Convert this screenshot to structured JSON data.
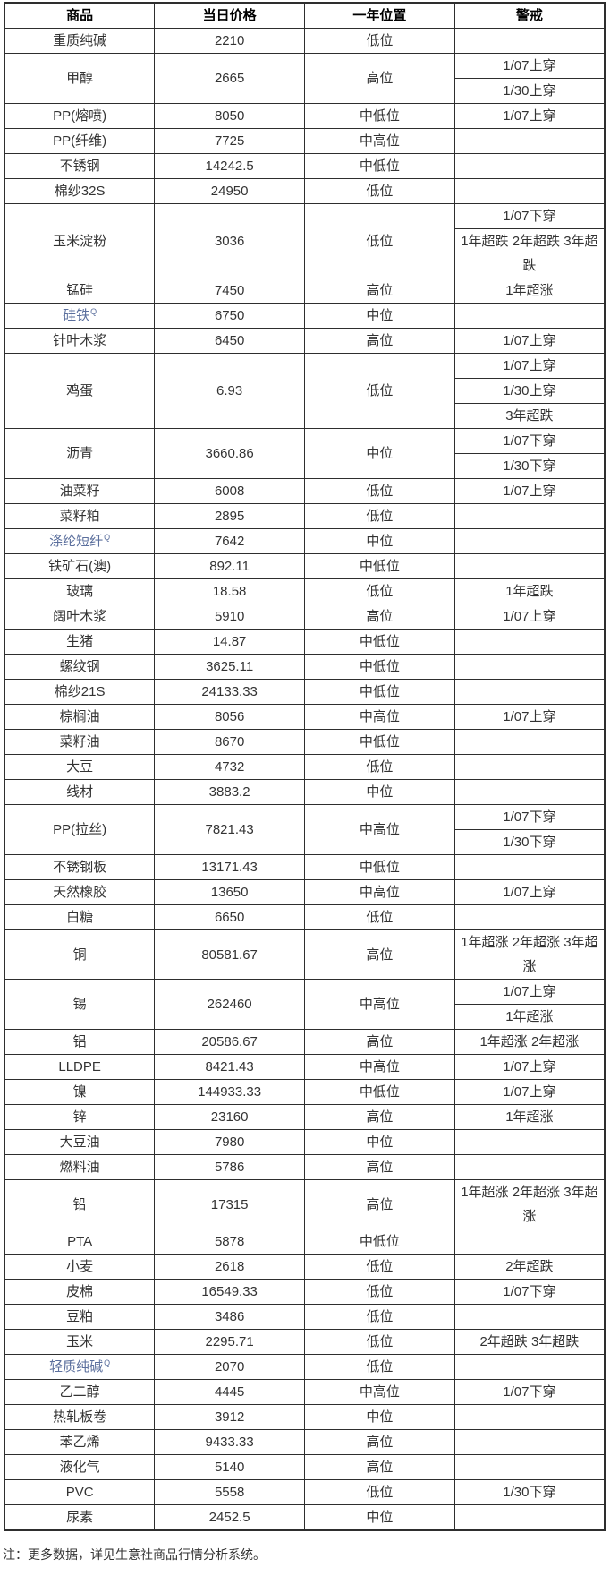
{
  "table": {
    "headers": [
      "商品",
      "当日价格",
      "一年位置",
      "警戒"
    ],
    "link_icon_glyph": "Q",
    "rows": [
      {
        "name": "重质纯碱",
        "price": "2210",
        "position": "低位",
        "warnings": [
          ""
        ]
      },
      {
        "name": "甲醇",
        "price": "2665",
        "position": "高位",
        "warnings": [
          "1/07上穿",
          "1/30上穿"
        ]
      },
      {
        "name": "PP(熔喷)",
        "price": "8050",
        "position": "中低位",
        "warnings": [
          "1/07上穿"
        ]
      },
      {
        "name": "PP(纤维)",
        "price": "7725",
        "position": "中高位",
        "warnings": [
          ""
        ]
      },
      {
        "name": "不锈钢",
        "price": "14242.5",
        "position": "中低位",
        "warnings": [
          ""
        ]
      },
      {
        "name": "棉纱32S",
        "price": "24950",
        "position": "低位",
        "warnings": [
          ""
        ]
      },
      {
        "name": "玉米淀粉",
        "price": "3036",
        "position": "低位",
        "warnings": [
          "1/07下穿",
          "1年超跌 2年超跌 3年超跌"
        ]
      },
      {
        "name": "锰硅",
        "price": "7450",
        "position": "高位",
        "warnings": [
          "1年超涨"
        ]
      },
      {
        "name": "硅铁",
        "price": "6750",
        "position": "中位",
        "warnings": [
          ""
        ],
        "link": true
      },
      {
        "name": "针叶木浆",
        "price": "6450",
        "position": "高位",
        "warnings": [
          "1/07上穿"
        ]
      },
      {
        "name": "鸡蛋",
        "price": "6.93",
        "position": "低位",
        "warnings": [
          "1/07上穿",
          "1/30上穿",
          "3年超跌"
        ]
      },
      {
        "name": "沥青",
        "price": "3660.86",
        "position": "中位",
        "warnings": [
          "1/07下穿",
          "1/30下穿"
        ]
      },
      {
        "name": "油菜籽",
        "price": "6008",
        "position": "低位",
        "warnings": [
          "1/07上穿"
        ]
      },
      {
        "name": "菜籽粕",
        "price": "2895",
        "position": "低位",
        "warnings": [
          ""
        ]
      },
      {
        "name": "涤纶短纤",
        "price": "7642",
        "position": "中位",
        "warnings": [
          ""
        ],
        "link": true
      },
      {
        "name": "铁矿石(澳)",
        "price": "892.11",
        "position": "中低位",
        "warnings": [
          ""
        ]
      },
      {
        "name": "玻璃",
        "price": "18.58",
        "position": "低位",
        "warnings": [
          "1年超跌"
        ]
      },
      {
        "name": "阔叶木浆",
        "price": "5910",
        "position": "高位",
        "warnings": [
          "1/07上穿"
        ]
      },
      {
        "name": "生猪",
        "price": "14.87",
        "position": "中低位",
        "warnings": [
          ""
        ]
      },
      {
        "name": "螺纹钢",
        "price": "3625.11",
        "position": "中低位",
        "warnings": [
          ""
        ]
      },
      {
        "name": "棉纱21S",
        "price": "24133.33",
        "position": "中低位",
        "warnings": [
          ""
        ]
      },
      {
        "name": "棕榈油",
        "price": "8056",
        "position": "中高位",
        "warnings": [
          "1/07上穿"
        ]
      },
      {
        "name": "菜籽油",
        "price": "8670",
        "position": "中低位",
        "warnings": [
          ""
        ]
      },
      {
        "name": "大豆",
        "price": "4732",
        "position": "低位",
        "warnings": [
          ""
        ]
      },
      {
        "name": "线材",
        "price": "3883.2",
        "position": "中位",
        "warnings": [
          ""
        ]
      },
      {
        "name": "PP(拉丝)",
        "price": "7821.43",
        "position": "中高位",
        "warnings": [
          "1/07下穿",
          "1/30下穿"
        ]
      },
      {
        "name": "不锈钢板",
        "price": "13171.43",
        "position": "中低位",
        "warnings": [
          ""
        ]
      },
      {
        "name": "天然橡胶",
        "price": "13650",
        "position": "中高位",
        "warnings": [
          "1/07上穿"
        ]
      },
      {
        "name": "白糖",
        "price": "6650",
        "position": "低位",
        "warnings": [
          ""
        ]
      },
      {
        "name": "铜",
        "price": "80581.67",
        "position": "高位",
        "warnings": [
          "1年超涨 2年超涨 3年超涨"
        ]
      },
      {
        "name": "锡",
        "price": "262460",
        "position": "中高位",
        "warnings": [
          "1/07上穿",
          "1年超涨"
        ]
      },
      {
        "name": "铝",
        "price": "20586.67",
        "position": "高位",
        "warnings": [
          "1年超涨 2年超涨"
        ]
      },
      {
        "name": "LLDPE",
        "price": "8421.43",
        "position": "中高位",
        "warnings": [
          "1/07上穿"
        ]
      },
      {
        "name": "镍",
        "price": "144933.33",
        "position": "中低位",
        "warnings": [
          "1/07上穿"
        ]
      },
      {
        "name": "锌",
        "price": "23160",
        "position": "高位",
        "warnings": [
          "1年超涨"
        ]
      },
      {
        "name": "大豆油",
        "price": "7980",
        "position": "中位",
        "warnings": [
          ""
        ]
      },
      {
        "name": "燃料油",
        "price": "5786",
        "position": "高位",
        "warnings": [
          ""
        ]
      },
      {
        "name": "铅",
        "price": "17315",
        "position": "高位",
        "warnings": [
          "1年超涨 2年超涨 3年超涨"
        ]
      },
      {
        "name": "PTA",
        "price": "5878",
        "position": "中低位",
        "warnings": [
          ""
        ]
      },
      {
        "name": "小麦",
        "price": "2618",
        "position": "低位",
        "warnings": [
          "2年超跌"
        ]
      },
      {
        "name": "皮棉",
        "price": "16549.33",
        "position": "低位",
        "warnings": [
          "1/07下穿"
        ]
      },
      {
        "name": "豆粕",
        "price": "3486",
        "position": "低位",
        "warnings": [
          ""
        ]
      },
      {
        "name": "玉米",
        "price": "2295.71",
        "position": "低位",
        "warnings": [
          "2年超跌 3年超跌"
        ]
      },
      {
        "name": "轻质纯碱",
        "price": "2070",
        "position": "低位",
        "warnings": [
          ""
        ],
        "link": true
      },
      {
        "name": "乙二醇",
        "price": "4445",
        "position": "中高位",
        "warnings": [
          "1/07下穿"
        ]
      },
      {
        "name": "热轧板卷",
        "price": "3912",
        "position": "中位",
        "warnings": [
          ""
        ]
      },
      {
        "name": "苯乙烯",
        "price": "9433.33",
        "position": "高位",
        "warnings": [
          ""
        ]
      },
      {
        "name": "液化气",
        "price": "5140",
        "position": "高位",
        "warnings": [
          ""
        ]
      },
      {
        "name": "PVC",
        "price": "5558",
        "position": "低位",
        "warnings": [
          "1/30下穿"
        ]
      },
      {
        "name": "尿素",
        "price": "2452.5",
        "position": "中位",
        "warnings": [
          ""
        ]
      }
    ]
  },
  "footer": {
    "note": "注：更多数据，详见生意社商品行情分析系统。"
  },
  "colors": {
    "link_blue": "#5b6f9d",
    "border": "#2e2e2e",
    "text": "#333333"
  }
}
